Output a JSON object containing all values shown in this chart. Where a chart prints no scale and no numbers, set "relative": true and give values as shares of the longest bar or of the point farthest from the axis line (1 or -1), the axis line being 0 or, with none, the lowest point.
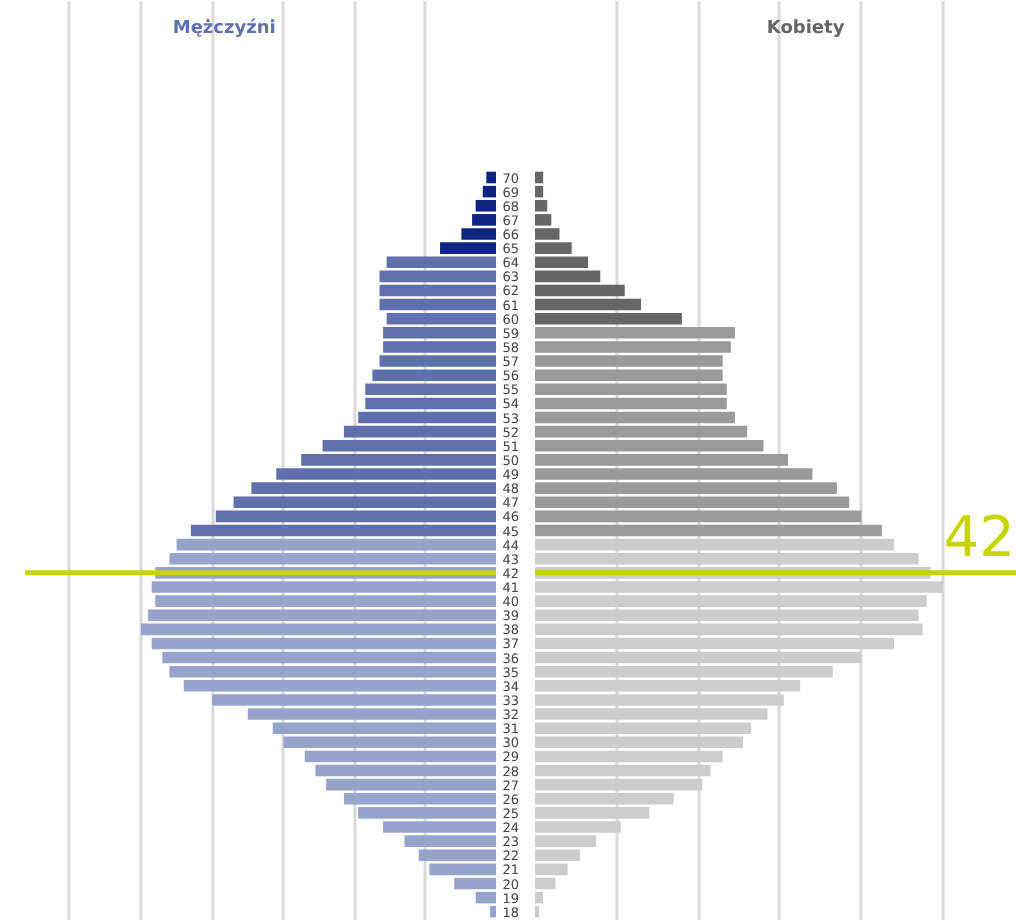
{
  "chart_data": [
    {
      "type": "bar",
      "orientation": "horizontal",
      "relative": true,
      "grid": "x",
      "tick_labels": false,
      "categories": [
        "70",
        "69",
        "68",
        "67",
        "66",
        "65",
        "64",
        "63",
        "62",
        "61",
        "60",
        "59",
        "58",
        "57",
        "56",
        "55",
        "54",
        "53",
        "52",
        "51",
        "50",
        "49",
        "48",
        "47",
        "46",
        "45",
        "44",
        "43",
        "42",
        "41",
        "40",
        "39",
        "38",
        "37",
        "36",
        "35",
        "34",
        "33",
        "32",
        "31",
        "30",
        "29",
        "28",
        "27",
        "26",
        "25",
        "24",
        "23",
        "22",
        "21",
        "20",
        "19",
        "18"
      ],
      "series": [
        {
          "name": "Mężczyźni",
          "color": "#5f70ad",
          "colors": [
            "#0d2480",
            "#0d2480",
            "#0d2480",
            "#0d2480",
            "#0d2480",
            "#0d2480",
            "#5f70ad",
            "#5f70ad",
            "#5f70ad",
            "#5f70ad",
            "#5f70ad",
            "#5f70ad",
            "#5f70ad",
            "#5f70ad",
            "#5f70ad",
            "#5f70ad",
            "#5f70ad",
            "#5f70ad",
            "#5f70ad",
            "#5f70ad",
            "#5f70ad",
            "#5f70ad",
            "#5f70ad",
            "#5f70ad",
            "#5f70ad",
            "#5f70ad",
            "#98a3cc",
            "#98a3cc",
            "#98a3cc",
            "#98a3cc",
            "#98a3cc",
            "#98a3cc",
            "#98a3cc",
            "#98a3cc",
            "#98a3cc",
            "#98a3cc",
            "#98a3cc",
            "#98a3cc",
            "#98a3cc",
            "#98a3cc",
            "#98a3cc",
            "#98a3cc",
            "#98a3cc",
            "#98a3cc",
            "#98a3cc",
            "#98a3cc",
            "#98a3cc",
            "#98a3cc",
            "#98a3cc",
            "#98a3cc",
            "#98a3cc",
            "#98a3cc",
            "#98a3cc"
          ],
          "values": [
            0.03,
            0.04,
            0.06,
            0.07,
            0.1,
            0.16,
            0.31,
            0.33,
            0.33,
            0.33,
            0.31,
            0.32,
            0.32,
            0.33,
            0.35,
            0.37,
            0.37,
            0.39,
            0.43,
            0.49,
            0.55,
            0.62,
            0.69,
            0.74,
            0.79,
            0.86,
            0.9,
            0.92,
            0.96,
            0.97,
            0.96,
            0.98,
            1,
            0.97,
            0.94,
            0.92,
            0.88,
            0.8,
            0.7,
            0.63,
            0.6,
            0.54,
            0.51,
            0.48,
            0.43,
            0.39,
            0.32,
            0.26,
            0.22,
            0.19,
            0.12,
            0.06,
            0.02
          ]
        }
      ],
      "ref_lines": [
        {
          "axis": "y",
          "value": "42",
          "color": "#c8d400"
        }
      ]
    },
    {
      "type": "bar",
      "orientation": "horizontal",
      "relative": true,
      "grid": "x",
      "tick_labels": "y",
      "categories": [
        "70",
        "69",
        "68",
        "67",
        "66",
        "65",
        "64",
        "63",
        "62",
        "61",
        "60",
        "59",
        "58",
        "57",
        "56",
        "55",
        "54",
        "53",
        "52",
        "51",
        "50",
        "49",
        "48",
        "47",
        "46",
        "45",
        "44",
        "43",
        "42",
        "41",
        "40",
        "39",
        "38",
        "37",
        "36",
        "35",
        "34",
        "33",
        "32",
        "31",
        "30",
        "29",
        "28",
        "27",
        "26",
        "25",
        "24",
        "23",
        "22",
        "21",
        "20",
        "19",
        "18"
      ],
      "series": [
        {
          "name": "Kobiety",
          "color": "#666666",
          "colors": [
            "#666666",
            "#666666",
            "#666666",
            "#666666",
            "#666666",
            "#666666",
            "#666666",
            "#666666",
            "#666666",
            "#666666",
            "#666666",
            "#9a9a9a",
            "#9a9a9a",
            "#9a9a9a",
            "#9a9a9a",
            "#9a9a9a",
            "#9a9a9a",
            "#9a9a9a",
            "#9a9a9a",
            "#9a9a9a",
            "#9a9a9a",
            "#9a9a9a",
            "#9a9a9a",
            "#9a9a9a",
            "#9a9a9a",
            "#9a9a9a",
            "#cccccc",
            "#cccccc",
            "#cccccc",
            "#cccccc",
            "#cccccc",
            "#cccccc",
            "#cccccc",
            "#cccccc",
            "#cccccc",
            "#cccccc",
            "#cccccc",
            "#cccccc",
            "#cccccc",
            "#cccccc",
            "#cccccc",
            "#cccccc",
            "#cccccc",
            "#cccccc",
            "#cccccc",
            "#cccccc",
            "#cccccc",
            "#cccccc",
            "#cccccc",
            "#cccccc",
            "#cccccc",
            "#cccccc",
            "#cccccc"
          ],
          "values": [
            0.02,
            0.02,
            0.03,
            0.04,
            0.06,
            0.09,
            0.13,
            0.16,
            0.22,
            0.26,
            0.36,
            0.49,
            0.48,
            0.46,
            0.46,
            0.47,
            0.47,
            0.49,
            0.52,
            0.56,
            0.62,
            0.68,
            0.74,
            0.77,
            0.8,
            0.85,
            0.88,
            0.94,
            0.97,
            1,
            0.96,
            0.94,
            0.95,
            0.88,
            0.8,
            0.73,
            0.65,
            0.61,
            0.57,
            0.53,
            0.51,
            0.46,
            0.43,
            0.41,
            0.34,
            0.28,
            0.21,
            0.15,
            0.11,
            0.08,
            0.05,
            0.02,
            0.01
          ]
        }
      ],
      "ref_lines": [
        {
          "axis": "y",
          "value": "42",
          "label": "42",
          "color": "#c8d400"
        }
      ]
    }
  ]
}
